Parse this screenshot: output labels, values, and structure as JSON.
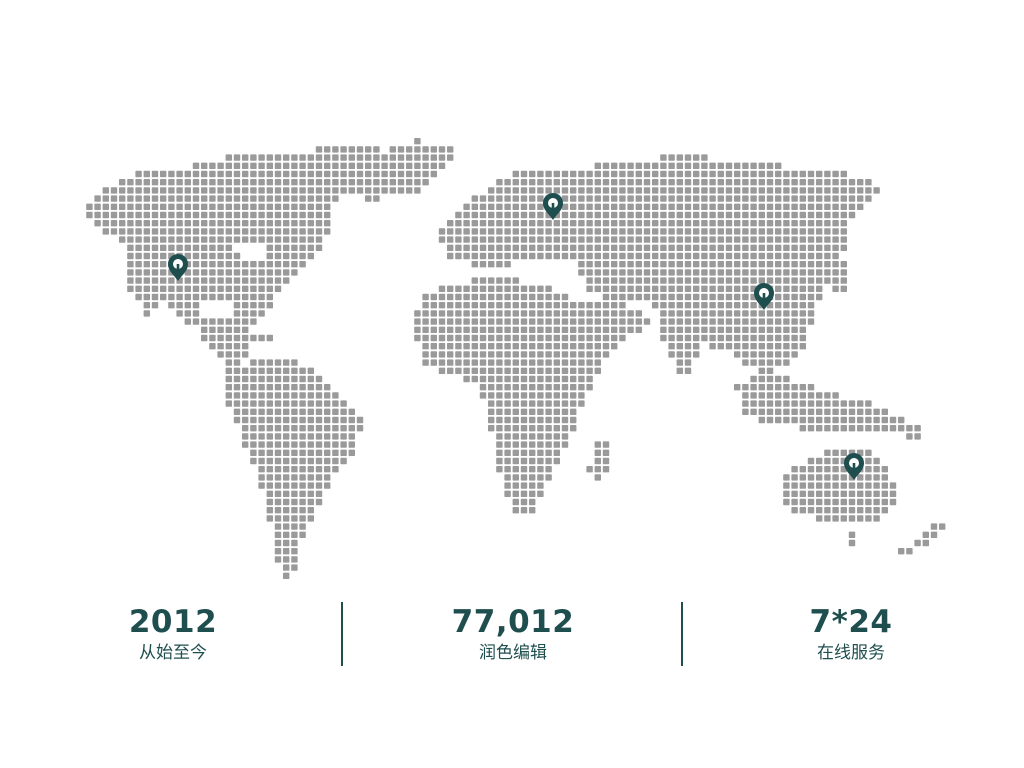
{
  "colors": {
    "dot": "#9a9a9a",
    "accent": "#1f4e4f",
    "background": "#ffffff"
  },
  "map": {
    "icon": "map-pin-icon",
    "markers": [
      {
        "name": "north-america",
        "icon": "map-pin-icon"
      },
      {
        "name": "europe",
        "icon": "map-pin-icon"
      },
      {
        "name": "china",
        "icon": "map-pin-icon"
      },
      {
        "name": "australia",
        "icon": "map-pin-icon"
      }
    ]
  },
  "stats": [
    {
      "value": "2012",
      "label": "从始至今"
    },
    {
      "value": "77,012",
      "label": "润色编辑"
    },
    {
      "value": "7*24",
      "label": "在线服务"
    }
  ]
}
